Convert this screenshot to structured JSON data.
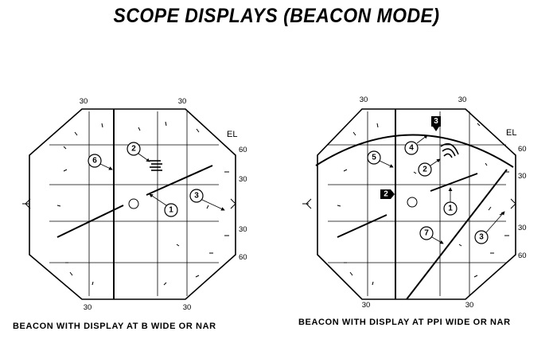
{
  "title": "SCOPE DISPLAYS (BEACON MODE)",
  "left_panel": {
    "caption": "BEACON WITH DISPLAY AT B WIDE OR NAR",
    "azimuth_labels": [
      "30",
      "30",
      "30",
      "30"
    ],
    "el_label": "EL",
    "el_scale": [
      "60",
      "30",
      "30",
      "60"
    ],
    "callouts": [
      "1",
      "2",
      "3",
      "6"
    ]
  },
  "right_panel": {
    "caption": "BEACON WITH DISPLAY AT PPI WIDE OR NAR",
    "azimuth_labels": [
      "30",
      "30",
      "30",
      "30"
    ],
    "el_label": "EL",
    "el_scale": [
      "60",
      "30",
      "30",
      "60"
    ],
    "callouts": [
      "1",
      "2",
      "3",
      "4",
      "5",
      "7"
    ],
    "flag_markers": [
      "2",
      "3"
    ]
  }
}
